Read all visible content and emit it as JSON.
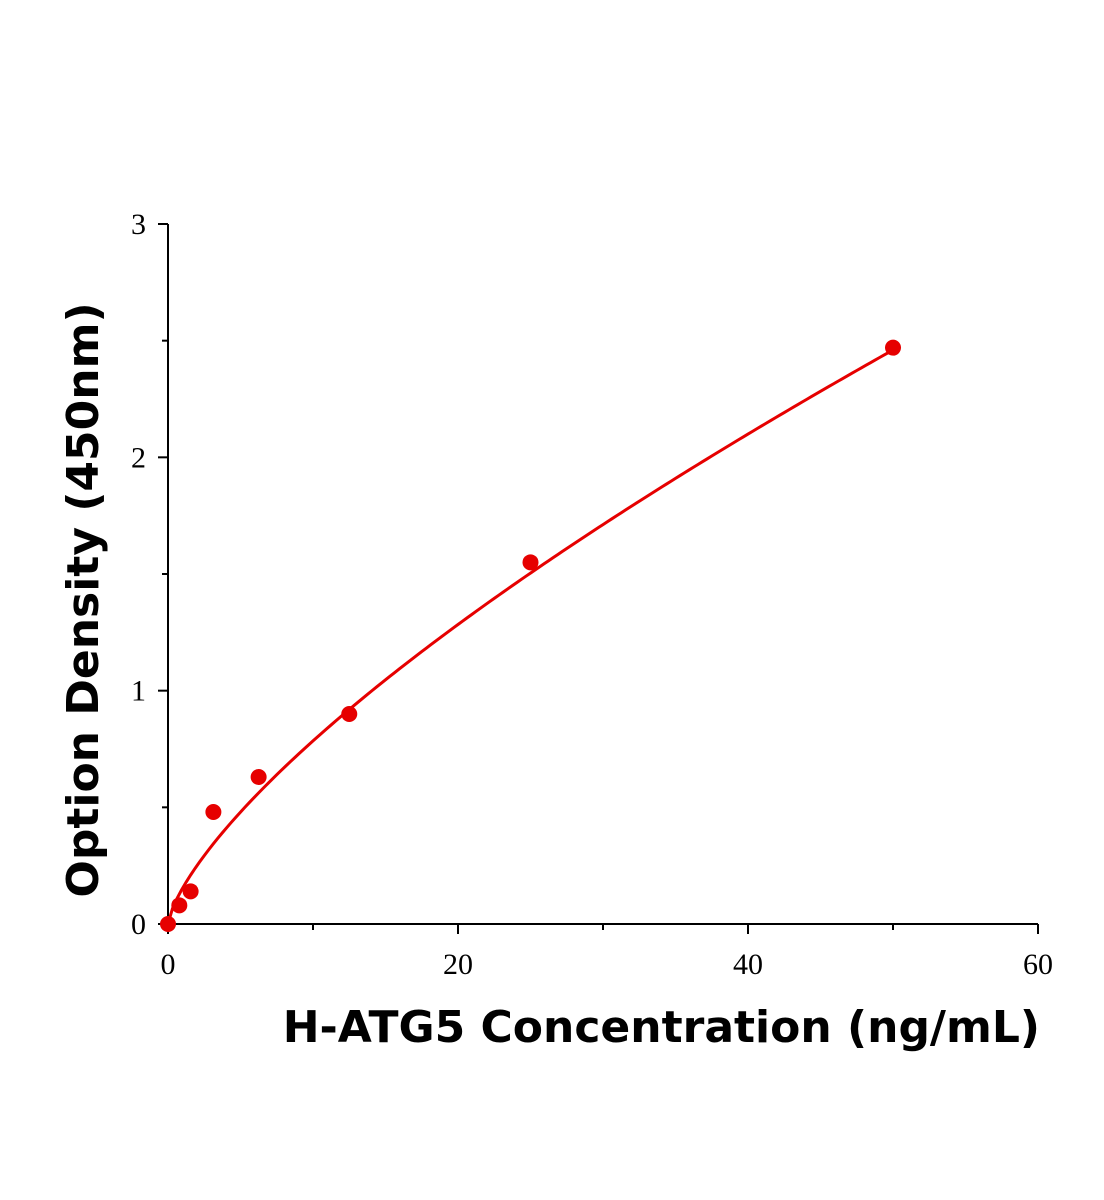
{
  "chart_data": {
    "type": "scatter",
    "xlabel": "H-ATG5 Concentration (ng/mL)",
    "ylabel": "Option Density (450nm)",
    "xlim": [
      0,
      60
    ],
    "ylim": [
      0,
      3
    ],
    "x_ticks": [
      "0",
      "20",
      "40",
      "60"
    ],
    "y_ticks": [
      "0",
      "1",
      "2",
      "3"
    ],
    "grid": false,
    "legend": "none",
    "series": [
      {
        "x": [
          0,
          0.78,
          1.56,
          3.13,
          6.25,
          12.5,
          25,
          50
        ],
        "y": [
          0.0,
          0.08,
          0.14,
          0.48,
          0.63,
          0.9,
          1.55,
          2.47
        ],
        "color": "#e60000",
        "fit_curve": true
      }
    ]
  }
}
